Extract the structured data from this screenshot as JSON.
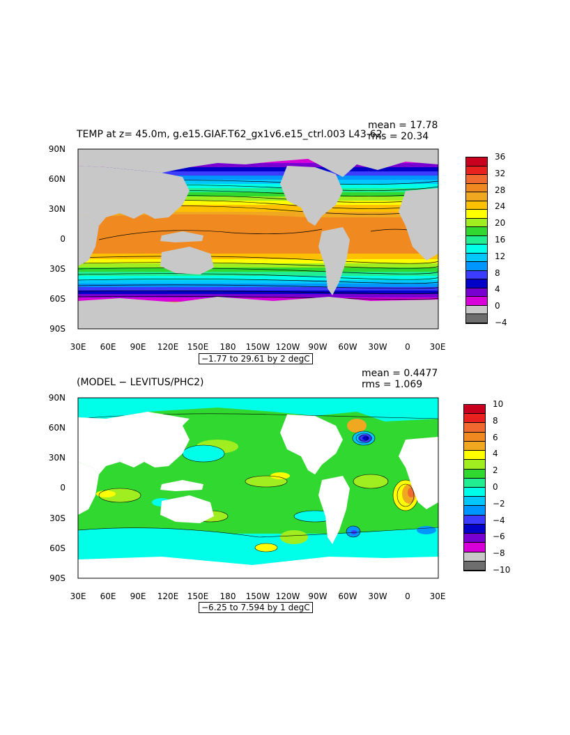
{
  "top": {
    "title": "TEMP at z=  45.0m, g.e15.GIAF.T62_gx1v6.e15_ctrl.003  L43-62",
    "mean_text": "mean = 17.78",
    "rms_text": "rms = 20.34",
    "range_text": "−1.77 to 29.61 by 2 degC",
    "lat_labels": [
      "90N",
      "60N",
      "30N",
      "0",
      "30S",
      "60S",
      "90S"
    ],
    "lon_labels": [
      "30E",
      "60E",
      "90E",
      "120E",
      "150E",
      "180",
      "150W",
      "120W",
      "90W",
      "60W",
      "30W",
      "0",
      "30E"
    ],
    "colorbar_labels": [
      "36",
      "32",
      "28",
      "24",
      "20",
      "16",
      "12",
      "8",
      "4",
      "0",
      "−4"
    ],
    "colorbar_colors": [
      "#c8001e",
      "#e8201e",
      "#f06a30",
      "#f08a20",
      "#f0a820",
      "#ffc000",
      "#ffff00",
      "#a0ee20",
      "#30d830",
      "#20ee90",
      "#00ffe8",
      "#00c8ff",
      "#0096ff",
      "#3c3cff",
      "#0000c8",
      "#7800d0",
      "#d800d8",
      "#c8c8c8",
      "#6e6e6e"
    ],
    "land_color": "#c8c8c8"
  },
  "bottom": {
    "title": "(MODEL − LEVITUS/PHC2)",
    "mean_text": "mean = 0.4477",
    "rms_text": "rms = 1.069",
    "range_text": "−6.25 to 7.594 by 1 degC",
    "lat_labels": [
      "90N",
      "60N",
      "30N",
      "0",
      "30S",
      "60S",
      "90S"
    ],
    "lon_labels": [
      "30E",
      "60E",
      "90E",
      "120E",
      "150E",
      "180",
      "150W",
      "120W",
      "90W",
      "60W",
      "30W",
      "0",
      "30E"
    ],
    "colorbar_labels": [
      "10",
      "8",
      "6",
      "4",
      "2",
      "0",
      "−2",
      "−4",
      "−6",
      "−8",
      "−10"
    ],
    "colorbar_colors": [
      "#c8001e",
      "#e8201e",
      "#f06a30",
      "#f08a20",
      "#f0a820",
      "#ffff00",
      "#a0ee20",
      "#30d830",
      "#20ee90",
      "#00ffe8",
      "#00c8ff",
      "#0096ff",
      "#3c3cff",
      "#0000c8",
      "#7800d0",
      "#d800d8",
      "#c8c8c8",
      "#6e6e6e"
    ],
    "land_color": "#ffffff"
  }
}
